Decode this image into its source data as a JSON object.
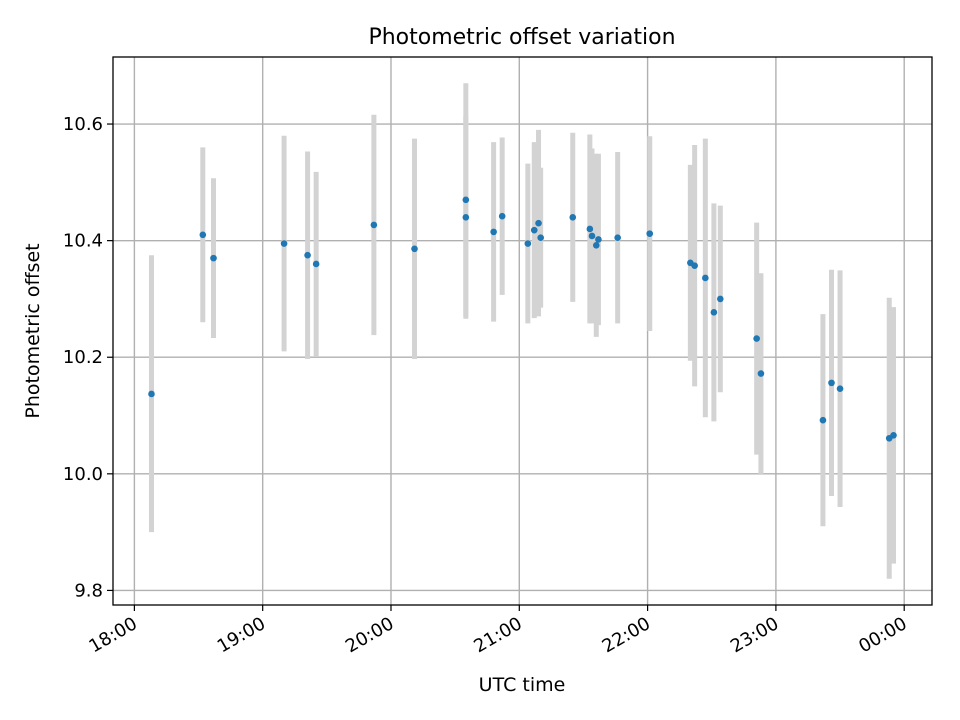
{
  "chart_data": {
    "type": "scatter",
    "title": "Photometric offset variation",
    "xlabel": "UTC time",
    "ylabel": "Photometric offset",
    "grid": true,
    "xlim": [
      "17:50",
      "00:13"
    ],
    "ylim": [
      9.775,
      10.715
    ],
    "x_ticks": [
      "18:00",
      "19:00",
      "20:00",
      "21:00",
      "22:00",
      "23:00",
      "00:00"
    ],
    "y_ticks": [
      "9.8",
      "10.0",
      "10.2",
      "10.4",
      "10.6"
    ],
    "colors": {
      "point": "#1f77b4",
      "errorbar": "#d3d3d3"
    },
    "points": [
      {
        "t": "18:08",
        "y": 10.137,
        "lo": 9.9,
        "hi": 10.375
      },
      {
        "t": "18:32",
        "y": 10.41,
        "lo": 10.26,
        "hi": 10.56
      },
      {
        "t": "18:37",
        "y": 10.37,
        "lo": 10.233,
        "hi": 10.507
      },
      {
        "t": "19:10",
        "y": 10.395,
        "lo": 10.21,
        "hi": 10.58
      },
      {
        "t": "19:21",
        "y": 10.375,
        "lo": 10.197,
        "hi": 10.553
      },
      {
        "t": "19:25",
        "y": 10.36,
        "lo": 10.202,
        "hi": 10.518
      },
      {
        "t": "19:52",
        "y": 10.427,
        "lo": 10.238,
        "hi": 10.616
      },
      {
        "t": "20:11",
        "y": 10.386,
        "lo": 10.197,
        "hi": 10.575
      },
      {
        "t": "20:35",
        "y": 10.47,
        "lo": 10.27,
        "hi": 10.67
      },
      {
        "t": "20:35",
        "y": 10.44,
        "lo": 10.266,
        "hi": 10.614
      },
      {
        "t": "20:48",
        "y": 10.415,
        "lo": 10.261,
        "hi": 10.569
      },
      {
        "t": "20:52",
        "y": 10.442,
        "lo": 10.307,
        "hi": 10.577
      },
      {
        "t": "21:04",
        "y": 10.395,
        "lo": 10.258,
        "hi": 10.532
      },
      {
        "t": "21:07",
        "y": 10.418,
        "lo": 10.267,
        "hi": 10.569
      },
      {
        "t": "21:09",
        "y": 10.43,
        "lo": 10.27,
        "hi": 10.59
      },
      {
        "t": "21:10",
        "y": 10.405,
        "lo": 10.285,
        "hi": 10.525
      },
      {
        "t": "21:25",
        "y": 10.44,
        "lo": 10.295,
        "hi": 10.585
      },
      {
        "t": "21:33",
        "y": 10.42,
        "lo": 10.258,
        "hi": 10.582
      },
      {
        "t": "21:34",
        "y": 10.408,
        "lo": 10.258,
        "hi": 10.558
      },
      {
        "t": "21:36",
        "y": 10.392,
        "lo": 10.235,
        "hi": 10.549
      },
      {
        "t": "21:37",
        "y": 10.402,
        "lo": 10.255,
        "hi": 10.549
      },
      {
        "t": "21:46",
        "y": 10.405,
        "lo": 10.258,
        "hi": 10.552
      },
      {
        "t": "22:01",
        "y": 10.412,
        "lo": 10.245,
        "hi": 10.579
      },
      {
        "t": "22:20",
        "y": 10.362,
        "lo": 10.194,
        "hi": 10.53
      },
      {
        "t": "22:22",
        "y": 10.357,
        "lo": 10.15,
        "hi": 10.564
      },
      {
        "t": "22:27",
        "y": 10.336,
        "lo": 10.097,
        "hi": 10.575
      },
      {
        "t": "22:31",
        "y": 10.277,
        "lo": 10.09,
        "hi": 10.464
      },
      {
        "t": "22:34",
        "y": 10.3,
        "lo": 10.14,
        "hi": 10.46
      },
      {
        "t": "22:51",
        "y": 10.232,
        "lo": 10.033,
        "hi": 10.431
      },
      {
        "t": "22:53",
        "y": 10.172,
        "lo": 10.0,
        "hi": 10.344
      },
      {
        "t": "23:22",
        "y": 10.092,
        "lo": 9.91,
        "hi": 10.274
      },
      {
        "t": "23:26",
        "y": 10.156,
        "lo": 9.962,
        "hi": 10.35
      },
      {
        "t": "23:30",
        "y": 10.146,
        "lo": 9.943,
        "hi": 10.349
      },
      {
        "t": "23:53",
        "y": 10.061,
        "lo": 9.82,
        "hi": 10.302
      },
      {
        "t": "23:55",
        "y": 10.066,
        "lo": 9.846,
        "hi": 10.286
      }
    ]
  }
}
